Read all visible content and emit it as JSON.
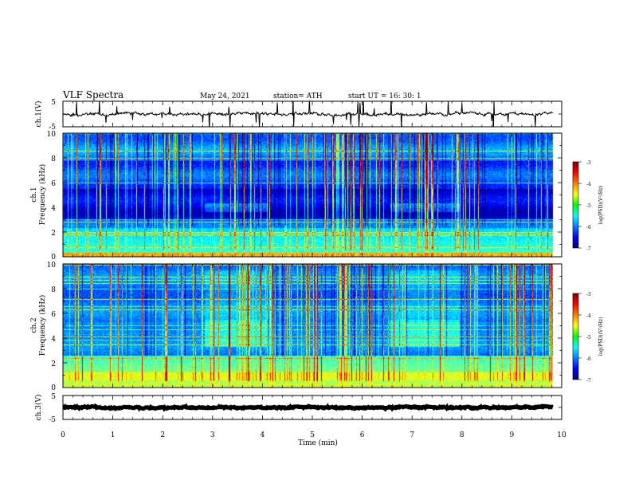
{
  "header": {
    "title": "VLF Spectra",
    "date": "May 24, 2021",
    "station": "station= ATH",
    "start": "start  UT  =   16: 30: 1"
  },
  "chart_data": {
    "type": "heatmap",
    "title": "VLF Spectra",
    "xlabel": "Time  (min)",
    "xlim": [
      0,
      10
    ],
    "x_ticks": [
      "0",
      "1",
      "2",
      "3",
      "4",
      "5",
      "6",
      "7",
      "8",
      "9",
      "10"
    ],
    "panels": [
      {
        "id": "ch1-voltage",
        "type": "line",
        "ylabel": "ch.1(V)",
        "ylim": [
          -5,
          5
        ],
        "y_ticks": [
          "5",
          "-5"
        ],
        "baseline_v": 0,
        "noise_amplitude_v": 0.6,
        "data_end_min": 9.82
      },
      {
        "id": "ch1-spectrogram",
        "type": "heatmap",
        "ylabel_top": "ch.1",
        "ylabel": "Frequency  (kHz)",
        "ylim": [
          0,
          10
        ],
        "y_ticks": [
          "0",
          "2",
          "4",
          "6",
          "8",
          "10"
        ],
        "colorbar_label": "log(PSD)(V²/Hz)",
        "colorbar_ticks": [
          "-3",
          "-4",
          "-5",
          "-6",
          "-7"
        ],
        "colorbar_range": [
          -7,
          -3
        ],
        "enhanced_intervals_min": [
          [
            2.85,
            4.1
          ],
          [
            6.55,
            7.95
          ]
        ],
        "enhanced_band_khz": [
          3.6,
          4.3
        ],
        "data_end_min": 9.82
      },
      {
        "id": "ch2-spectrogram",
        "type": "heatmap",
        "ylabel_top": "ch.2",
        "ylabel": "Frequency  (kHz)",
        "ylim": [
          0,
          10
        ],
        "y_ticks": [
          "0",
          "2",
          "4",
          "6",
          "8",
          "10"
        ],
        "colorbar_label": "log(PSD)(V²/Hz)",
        "colorbar_ticks": [
          "-3",
          "-4",
          "-5",
          "-6",
          "-7"
        ],
        "colorbar_range": [
          -7,
          -3
        ],
        "enhanced_intervals_min": [
          [
            2.85,
            4.1
          ],
          [
            6.55,
            7.95
          ]
        ],
        "enhanced_band_khz": [
          3.3,
          5.5
        ],
        "data_end_min": 9.82
      },
      {
        "id": "ch3-voltage",
        "type": "line",
        "ylabel": "ch.3(V)",
        "ylim": [
          -5,
          5
        ],
        "y_ticks": [
          "5",
          "0",
          "-5"
        ],
        "baseline_v": 0,
        "noise_amplitude_v": 0.3,
        "data_end_min": 9.82
      }
    ]
  }
}
